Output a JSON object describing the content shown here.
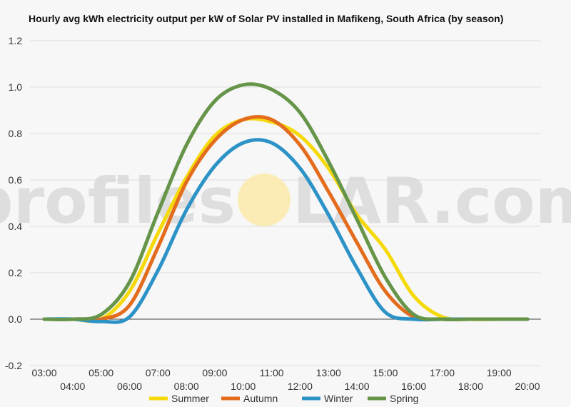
{
  "chart_data": {
    "type": "line",
    "title": "Hourly avg kWh electricity output per kW of Solar PV installed in Mafikeng, South Africa (by season)",
    "xlabel": "",
    "ylabel": "",
    "ylim": [
      -0.2,
      1.2
    ],
    "yticks": [
      "1.2",
      "1.0",
      "0.8",
      "0.6",
      "0.4",
      "0.2",
      "0.0",
      "-0.2"
    ],
    "categories": [
      "03:00",
      "04:00",
      "05:00",
      "06:00",
      "07:00",
      "08:00",
      "09:00",
      "10:00",
      "11:00",
      "12:00",
      "13:00",
      "14:00",
      "15:00",
      "16:00",
      "17:00",
      "18:00",
      "19:00",
      "20:00"
    ],
    "grid": true,
    "legend_position": "bottom",
    "series": [
      {
        "name": "Summer",
        "color": "#f5d90a",
        "values": [
          0.0,
          0.0,
          0.0,
          0.12,
          0.37,
          0.61,
          0.79,
          0.86,
          0.85,
          0.79,
          0.65,
          0.45,
          0.3,
          0.1,
          0.01,
          0.0,
          0.0,
          0.0
        ]
      },
      {
        "name": "Autumn",
        "color": "#e36c1d",
        "values": [
          0.0,
          0.0,
          0.0,
          0.06,
          0.31,
          0.59,
          0.77,
          0.86,
          0.86,
          0.75,
          0.55,
          0.33,
          0.12,
          0.01,
          0.0,
          0.0,
          0.0,
          0.0
        ]
      },
      {
        "name": "Winter",
        "color": "#2d93c7",
        "values": [
          0.0,
          0.0,
          -0.01,
          0.01,
          0.21,
          0.47,
          0.66,
          0.76,
          0.76,
          0.65,
          0.45,
          0.22,
          0.03,
          0.0,
          0.0,
          0.0,
          0.0,
          0.0
        ]
      },
      {
        "name": "Spring",
        "color": "#66954a",
        "values": [
          0.0,
          0.0,
          0.02,
          0.16,
          0.46,
          0.75,
          0.94,
          1.01,
          0.99,
          0.89,
          0.68,
          0.43,
          0.18,
          0.02,
          0.0,
          0.0,
          0.0,
          0.0
        ]
      }
    ]
  },
  "watermark": {
    "left": "profiles",
    "right": "LAR.com",
    "logo_color": "#fbe9a8"
  }
}
